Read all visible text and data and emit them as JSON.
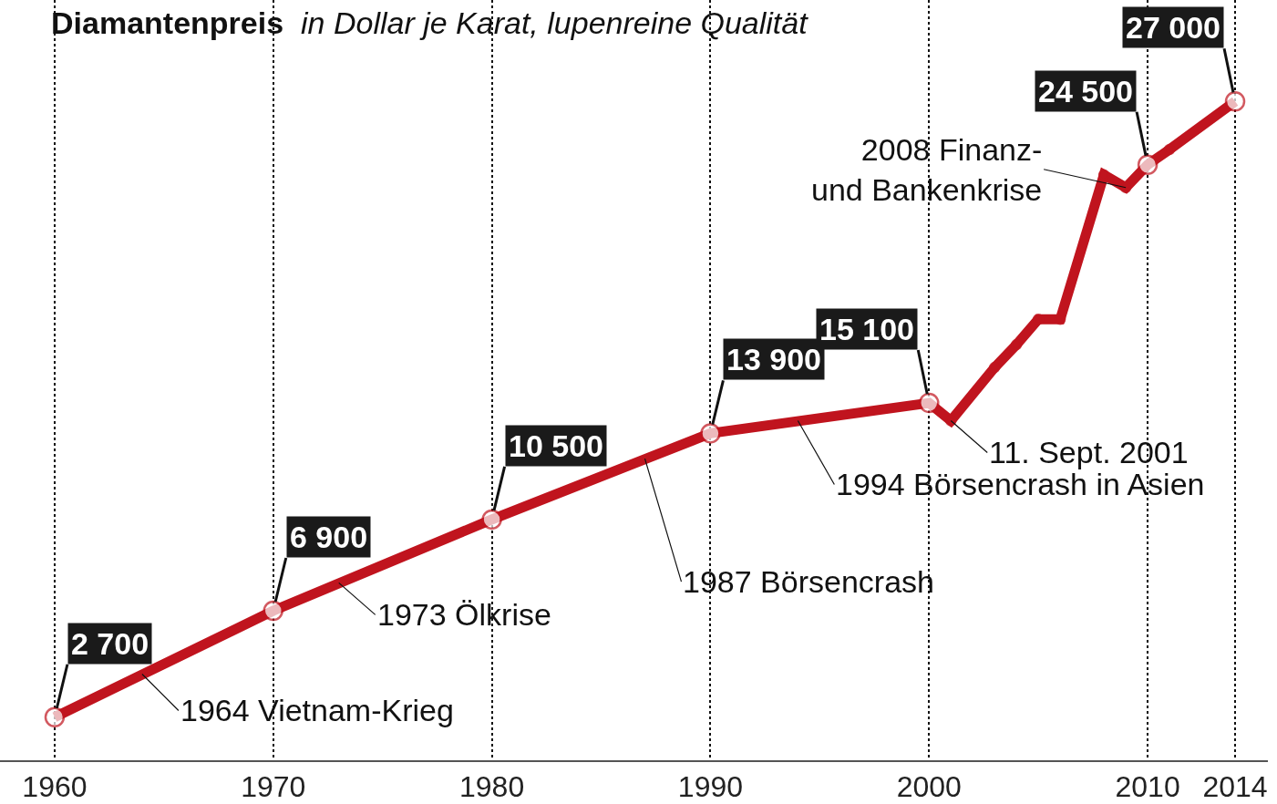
{
  "chart_data": {
    "type": "line",
    "title": "Diamantenpreis",
    "subtitle": "in Dollar je Karat, lupenreine Qualität",
    "x": [
      1960,
      1970,
      1980,
      1990,
      2000,
      2001,
      2003,
      2004,
      2005,
      2006,
      2008,
      2009,
      2010,
      2011,
      2014
    ],
    "series": [
      {
        "color": "#c0141e",
        "values": [
          2700,
          6900,
          10500,
          13900,
          15100,
          14400,
          16500,
          17400,
          18400,
          18400,
          24100,
          23600,
          24500,
          25100,
          27000
        ],
        "value_labels": [
          "2 700",
          "6 900",
          "10 500",
          "13 900",
          "15 100",
          null,
          null,
          null,
          null,
          null,
          null,
          null,
          "24 500",
          null,
          "27 000"
        ]
      }
    ],
    "xlim": [
      1957.5,
      2015.5
    ],
    "xticks": [
      1960,
      1970,
      1980,
      1990,
      2000,
      2010,
      2014
    ],
    "ylim": [
      1000,
      31000
    ],
    "tick_labels": "x",
    "grid": "x",
    "marker": "circle",
    "line_style": "solid",
    "annotations": [
      {
        "text": "1964 Vietnam-Krieg",
        "x": 1964,
        "y": 4400
      },
      {
        "text": "1973 Ölkrise",
        "x": 1973,
        "y": 8000
      },
      {
        "text": "1987 Börsencrash",
        "x": 1987,
        "y": 12900
      },
      {
        "text": "1994 Börsencrash in Asien",
        "x": 1994,
        "y": 14400
      },
      {
        "text": "11. Sept. 2001",
        "x": 2001,
        "y": 14400
      },
      {
        "text": "2008 Finanz-\nund Bankenkrise",
        "x": 2009,
        "y": 23600
      }
    ]
  }
}
